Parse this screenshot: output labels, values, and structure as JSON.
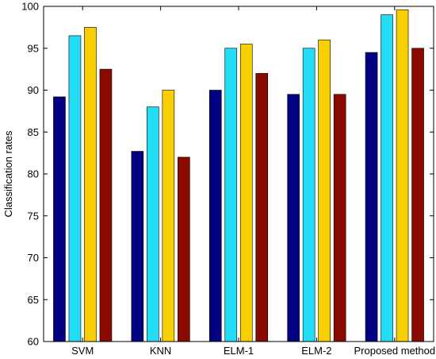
{
  "chart_data": {
    "type": "bar",
    "title": "",
    "xlabel": "",
    "ylabel": "Classification rates",
    "ylim": [
      60,
      100
    ],
    "yticks": [
      60,
      65,
      70,
      75,
      80,
      85,
      90,
      95,
      100
    ],
    "categories": [
      "SVM",
      "KNN",
      "ELM-1",
      "ELM-2",
      "Proposed method"
    ],
    "series": [
      {
        "color": "#000080",
        "values": [
          89.2,
          82.7,
          90.0,
          89.5,
          94.5
        ]
      },
      {
        "color": "#22ddf5",
        "values": [
          96.5,
          88.0,
          95.0,
          95.0,
          99.0
        ]
      },
      {
        "color": "#f8cf00",
        "values": [
          97.5,
          90.0,
          95.5,
          96.0,
          99.6
        ]
      },
      {
        "color": "#8b0a00",
        "values": [
          92.5,
          82.0,
          92.0,
          89.5,
          95.0
        ]
      }
    ],
    "grid": false,
    "legend": "none"
  }
}
